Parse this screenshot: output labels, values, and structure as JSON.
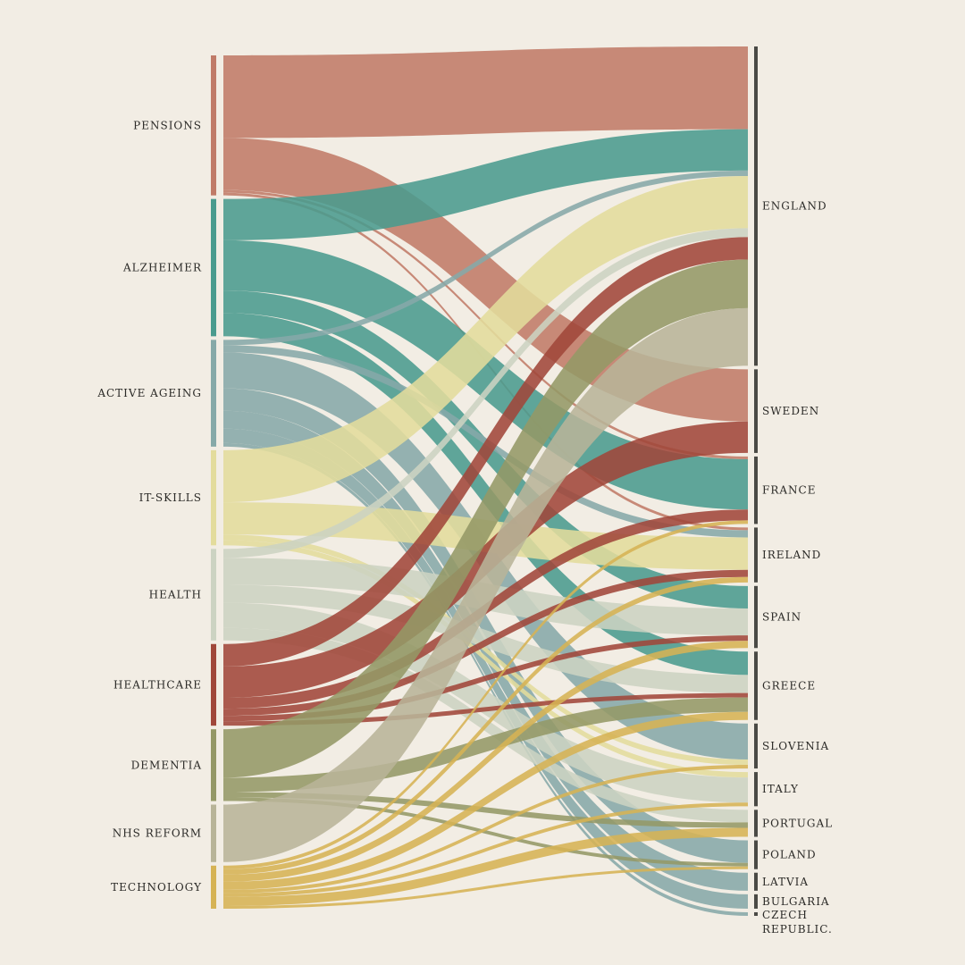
{
  "chart_data": {
    "type": "sankey",
    "sources": [
      {
        "id": "pensions",
        "label": "PENSIONS",
        "color": "#c07b68"
      },
      {
        "id": "alzheimer",
        "label": "ALZHEIMER",
        "color": "#4a9b8e"
      },
      {
        "id": "active",
        "label": "ACTIVE AGEING",
        "color": "#86a9a8"
      },
      {
        "id": "it",
        "label": "IT-SKILLS",
        "color": "#e3dc9c"
      },
      {
        "id": "health",
        "label": "HEALTH",
        "color": "#ccd3c2"
      },
      {
        "id": "healthcare",
        "label": "HEALTHCARE",
        "color": "#a0473a"
      },
      {
        "id": "dementia",
        "label": "DEMENTIA",
        "color": "#949866"
      },
      {
        "id": "nhs",
        "label": "NHS REFORM",
        "color": "#b8b498"
      },
      {
        "id": "tech",
        "label": "TECHNOLOGY",
        "color": "#d6b354"
      }
    ],
    "targets": [
      {
        "id": "england",
        "label": "ENGLAND"
      },
      {
        "id": "sweden",
        "label": "SWEDEN"
      },
      {
        "id": "france",
        "label": "FRANCE"
      },
      {
        "id": "ireland",
        "label": "IRELAND"
      },
      {
        "id": "spain",
        "label": "SPAIN"
      },
      {
        "id": "greece",
        "label": "GREECE"
      },
      {
        "id": "slovenia",
        "label": "SLOVENIA"
      },
      {
        "id": "italy",
        "label": "ITALY"
      },
      {
        "id": "portugal",
        "label": "PORTUGAL"
      },
      {
        "id": "poland",
        "label": "POLAND"
      },
      {
        "id": "latvia",
        "label": "LATVIA"
      },
      {
        "id": "bulgaria",
        "label": "BULGARIA"
      },
      {
        "id": "czech",
        "label": "CZECH REPUBLIC."
      }
    ],
    "flows": [
      {
        "s": "pensions",
        "t": "england",
        "v": 92
      },
      {
        "s": "pensions",
        "t": "sweden",
        "v": 58
      },
      {
        "s": "pensions",
        "t": "france",
        "v": 3
      },
      {
        "s": "pensions",
        "t": "ireland",
        "v": 3
      },
      {
        "s": "alzheimer",
        "t": "england",
        "v": 46
      },
      {
        "s": "alzheimer",
        "t": "france",
        "v": 56
      },
      {
        "s": "alzheimer",
        "t": "spain",
        "v": 25
      },
      {
        "s": "alzheimer",
        "t": "greece",
        "v": 26
      },
      {
        "s": "active",
        "t": "england",
        "v": 6
      },
      {
        "s": "active",
        "t": "ireland",
        "v": 8
      },
      {
        "s": "active",
        "t": "slovenia",
        "v": 40
      },
      {
        "s": "active",
        "t": "poland",
        "v": 25
      },
      {
        "s": "active",
        "t": "latvia",
        "v": 20
      },
      {
        "s": "active",
        "t": "bulgaria",
        "v": 16
      },
      {
        "s": "active",
        "t": "czech",
        "v": 4
      },
      {
        "s": "it",
        "t": "england",
        "v": 58
      },
      {
        "s": "it",
        "t": "ireland",
        "v": 36
      },
      {
        "s": "it",
        "t": "slovenia",
        "v": 6
      },
      {
        "s": "it",
        "t": "italy",
        "v": 6
      },
      {
        "s": "health",
        "t": "england",
        "v": 10
      },
      {
        "s": "health",
        "t": "spain",
        "v": 30
      },
      {
        "s": "health",
        "t": "greece",
        "v": 20
      },
      {
        "s": "health",
        "t": "italy",
        "v": 28
      },
      {
        "s": "health",
        "t": "portugal",
        "v": 14
      },
      {
        "s": "healthcare",
        "t": "england",
        "v": 25
      },
      {
        "s": "healthcare",
        "t": "sweden",
        "v": 35
      },
      {
        "s": "healthcare",
        "t": "france",
        "v": 12
      },
      {
        "s": "healthcare",
        "t": "ireland",
        "v": 8
      },
      {
        "s": "healthcare",
        "t": "spain",
        "v": 6
      },
      {
        "s": "healthcare",
        "t": "greece",
        "v": 5
      },
      {
        "s": "dementia",
        "t": "england",
        "v": 54
      },
      {
        "s": "dementia",
        "t": "greece",
        "v": 16
      },
      {
        "s": "dementia",
        "t": "portugal",
        "v": 6
      },
      {
        "s": "dementia",
        "t": "poland",
        "v": 4
      },
      {
        "s": "nhs",
        "t": "england",
        "v": 64
      },
      {
        "s": "tech",
        "t": "france",
        "v": 4
      },
      {
        "s": "tech",
        "t": "ireland",
        "v": 6
      },
      {
        "s": "tech",
        "t": "spain",
        "v": 8
      },
      {
        "s": "tech",
        "t": "greece",
        "v": 9
      },
      {
        "s": "tech",
        "t": "slovenia",
        "v": 4
      },
      {
        "s": "tech",
        "t": "italy",
        "v": 4
      },
      {
        "s": "tech",
        "t": "portugal",
        "v": 10
      },
      {
        "s": "tech",
        "t": "poland",
        "v": 3
      }
    ],
    "target_bar_color": "#4a4a45"
  }
}
